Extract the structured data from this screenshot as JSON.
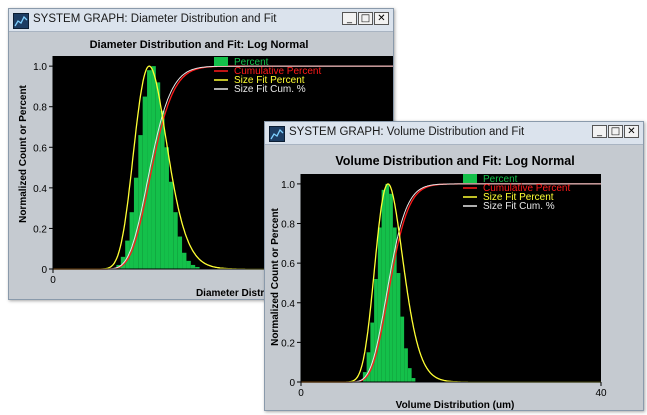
{
  "windows": [
    {
      "title": "SYSTEM GRAPH: Diameter Distribution and Fit",
      "controls": {
        "minimize": "_",
        "maximize": "□",
        "close": "✕"
      },
      "chart_data": {
        "type": "bar",
        "title": "Diameter Distribution and Fit: Log Normal",
        "xlabel": "Diameter Distribution (um)",
        "ylabel": "Normalized Count or Percent",
        "xlim": [
          0,
          40
        ],
        "ylim": [
          0,
          1.05
        ],
        "y_ticks": [
          "0",
          "0.2",
          "0.4",
          "0.6",
          "0.8",
          "1.0"
        ],
        "x_ticks": [
          "0"
        ],
        "legend": [
          "Percent",
          "Cumulative Percent",
          "Size Fit Percent",
          "Size Fit Cum. %"
        ],
        "legend_position": "top-right",
        "colors": {
          "percent": "#14c04a",
          "cumulative": "#ff1a1a",
          "fit": "#ffff33",
          "fit_cum": "#e8e8e8",
          "background": "#000000"
        },
        "fit": {
          "distribution": "log normal",
          "peak": 11,
          "sigma": 0.17
        },
        "x": [
          7.5,
          8.0,
          8.5,
          9.0,
          9.5,
          10.0,
          10.5,
          11.0,
          11.5,
          12.0,
          12.5,
          13.0,
          13.5,
          14.0,
          14.5,
          15.0,
          15.5,
          16.0,
          16.5
        ],
        "values": [
          0.02,
          0.06,
          0.14,
          0.28,
          0.45,
          0.66,
          0.85,
          0.98,
          1.0,
          0.92,
          0.78,
          0.6,
          0.43,
          0.28,
          0.16,
          0.08,
          0.04,
          0.02,
          0.01
        ]
      }
    },
    {
      "title": "SYSTEM GRAPH: Volume Distribution and Fit",
      "controls": {
        "minimize": "_",
        "maximize": "□",
        "close": "✕"
      },
      "chart_data": {
        "type": "bar",
        "title": "Volume Distribution and Fit: Log Normal",
        "xlabel": "Volume Distribution (um)",
        "ylabel": "Normalized Count or Percent",
        "xlim": [
          0,
          40
        ],
        "ylim": [
          0,
          1.05
        ],
        "y_ticks": [
          "0",
          "0.2",
          "0.4",
          "0.6",
          "0.8",
          "1.0"
        ],
        "x_ticks": [
          "0",
          "40"
        ],
        "legend": [
          "Percent",
          "Cumulative Percent",
          "Size Fit Percent",
          "Size Fit Cum. %"
        ],
        "legend_position": "top-right",
        "colors": {
          "percent": "#14c04a",
          "cumulative": "#ff1a1a",
          "fit": "#ffff33",
          "fit_cum": "#e8e8e8",
          "background": "#000000"
        },
        "fit": {
          "distribution": "log normal",
          "peak": 11.6,
          "sigma": 0.16
        },
        "x": [
          8.5,
          9.0,
          9.5,
          10.0,
          10.5,
          11.0,
          11.5,
          12.0,
          12.5,
          13.0,
          13.5,
          14.0,
          14.5,
          15.0
        ],
        "values": [
          0.05,
          0.15,
          0.3,
          0.52,
          0.78,
          0.97,
          1.0,
          0.95,
          0.78,
          0.55,
          0.33,
          0.17,
          0.07,
          0.02
        ]
      }
    }
  ]
}
